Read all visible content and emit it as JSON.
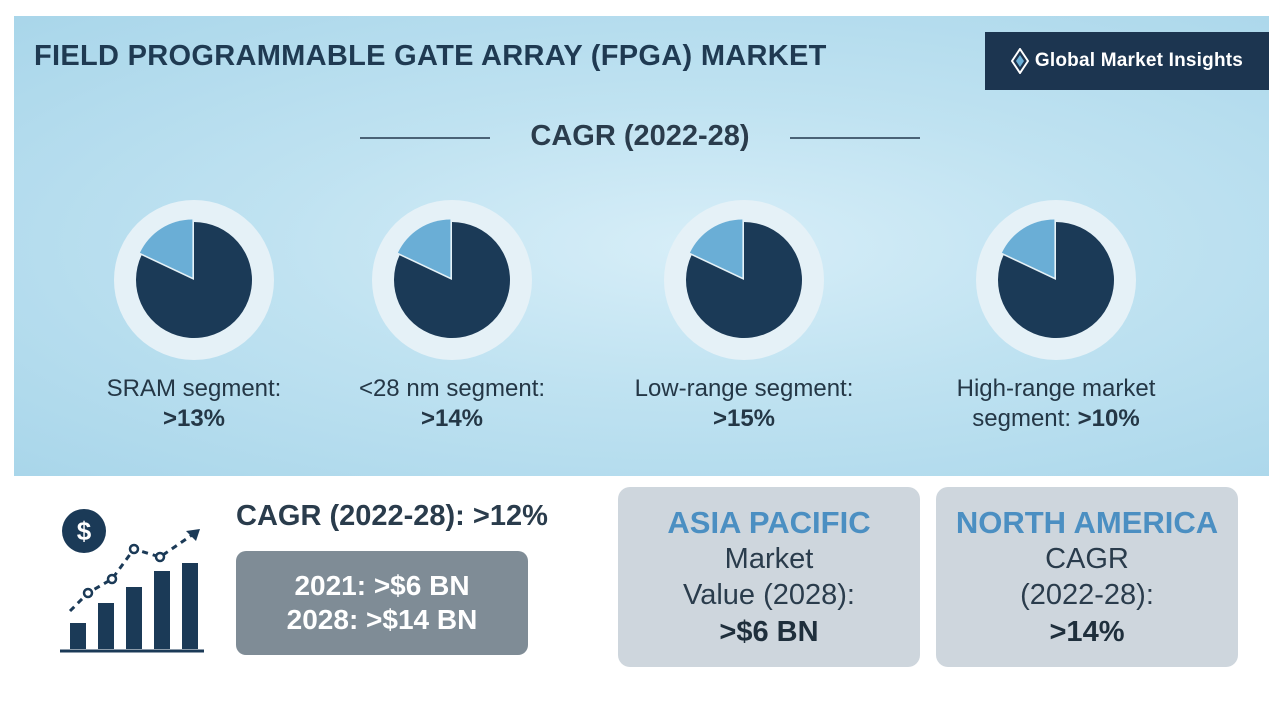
{
  "title": "FIELD PROGRAMMABLE GATE ARRAY (FPGA) MARKET",
  "logo": {
    "text": "Global Market Insights",
    "icon": "diamond-logo-icon"
  },
  "cagr_heading": "CAGR (2022-28)",
  "colors": {
    "pie_main": "#1b3a57",
    "pie_highlight": "#6aaed6",
    "ring": "#e5f1f7",
    "region_title": "#4b8fc2"
  },
  "chart_data": {
    "type": "pie",
    "title": "CAGR (2022-28)",
    "note": "Each pie is a decorative icon; highlighted wedge is the same size for all four.",
    "segments": [
      {
        "label": "SRAM segment:",
        "value_text": ">13%",
        "highlight_fraction": 0.18
      },
      {
        "label": "<28 nm segment:",
        "value_text": ">14%",
        "highlight_fraction": 0.18
      },
      {
        "label": "Low-range segment:",
        "value_text": ">15%",
        "highlight_fraction": 0.18
      },
      {
        "label_line1": "High-range market",
        "label_line2": "segment:",
        "value_text": ">10%",
        "highlight_fraction": 0.18
      }
    ]
  },
  "summary": {
    "cagr_text": "CAGR (2022-28): >12%",
    "value_2021": "2021: >$6 BN",
    "value_2028": "2028: >$14 BN",
    "icon": "growth-chart-dollar-icon"
  },
  "regions": [
    {
      "name": "ASIA PACIFIC",
      "line1": "Market",
      "line2": "Value (2028):",
      "value": ">$6 BN"
    },
    {
      "name": "NORTH AMERICA",
      "line1": "CAGR",
      "line2": "(2022-28):",
      "value": ">14%"
    }
  ]
}
